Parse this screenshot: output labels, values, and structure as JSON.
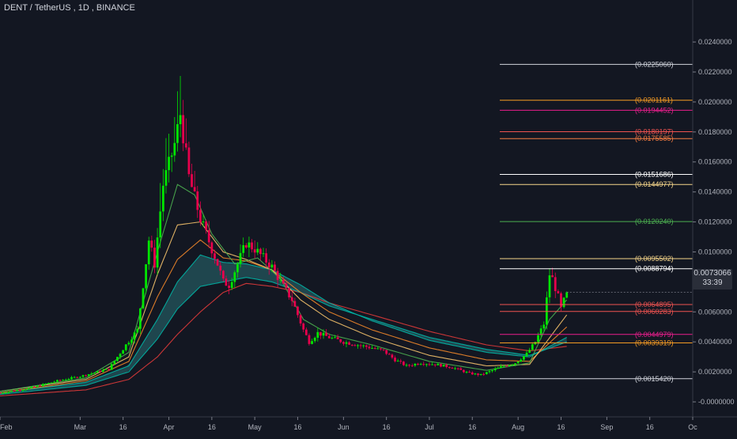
{
  "header": {
    "symbol": "DENT / TetherUS",
    "interval": "1D",
    "exchange": "BINANCE"
  },
  "last_price": {
    "value": "0.0073066",
    "countdown": "33:39",
    "color": "#2a2e39"
  },
  "colors": {
    "background": "#131722",
    "up": "#00e600",
    "down": "#e6004c",
    "ribbon_fill": "#2a6e72",
    "ribbon_edge": "#00b3a4",
    "ma_red": "#e03a3a",
    "ma_orange": "#f0862a",
    "ma_gold": "#f5c26b",
    "ma_green": "#4caf50"
  },
  "fib_levels": [
    {
      "value": 0.022506,
      "label": "(0.0225060)",
      "color": "#d1d4dc"
    },
    {
      "value": 0.0201161,
      "label": "(0.0201161)",
      "color": "#f59b23"
    },
    {
      "value": 0.0194452,
      "label": "(0.0194452)",
      "color": "#e91e8c"
    },
    {
      "value": 0.0180197,
      "label": "(0.0180197)",
      "color": "#ef5350"
    },
    {
      "value": 0.0175585,
      "label": "(0.0175585)",
      "color": "#f57c42"
    },
    {
      "value": 0.0151686,
      "label": "(0.0151686)",
      "color": "#ffffff"
    },
    {
      "value": 0.0144977,
      "label": "(0.0144977)",
      "color": "#f5d58a"
    },
    {
      "value": 0.012024,
      "label": "(0.0120240)",
      "color": "#4caf50"
    },
    {
      "value": 0.0095502,
      "label": "(0.0095502)",
      "color": "#f5d58a"
    },
    {
      "value": 0.0088794,
      "label": "(0.0088794)",
      "color": "#ffffff"
    },
    {
      "value": 0.0064895,
      "label": "(0.0064895)",
      "color": "#ef5350"
    },
    {
      "value": 0.0060283,
      "label": "(0.0060283)",
      "color": "#ef5350"
    },
    {
      "value": 0.0044979,
      "label": "(0.0044979)",
      "color": "#e91e8c"
    },
    {
      "value": 0.0039319,
      "label": "(0.0039319)",
      "color": "#f59b23"
    },
    {
      "value": 0.001542,
      "label": "(0.0015420)",
      "color": "#d1d4dc"
    }
  ],
  "chart_data": {
    "type": "candlestick",
    "title": "",
    "ylim": [
      -0.001,
      0.0268
    ],
    "y_ticks": [
      "0.0240000",
      "0.0220000",
      "0.0200000",
      "0.0180000",
      "0.0160000",
      "0.0140000",
      "0.0120000",
      "0.0100000",
      "0.0080000",
      "0.0060000",
      "0.0040000",
      "0.0020000",
      "-0.0000000"
    ],
    "y_tick_values": [
      0.024,
      0.022,
      0.02,
      0.018,
      0.016,
      0.014,
      0.012,
      0.01,
      0.008,
      0.006,
      0.004,
      0.002,
      0.0
    ],
    "x_ticks": [
      "Feb",
      "Mar",
      "16",
      "Apr",
      "16",
      "May",
      "16",
      "Jun",
      "16",
      "Jul",
      "16",
      "Aug",
      "16",
      "Sep",
      "16",
      "Oc"
    ],
    "x_tick_days": [
      0,
      28,
      43,
      59,
      74,
      89,
      104,
      120,
      135,
      150,
      165,
      181,
      196,
      212,
      227,
      242
    ],
    "x_day_range": [
      0,
      242
    ],
    "start_date": "Feb 1",
    "price_path": [
      [
        0,
        0.0006
      ],
      [
        10,
        0.0009
      ],
      [
        20,
        0.0014
      ],
      [
        28,
        0.0017
      ],
      [
        38,
        0.0022
      ],
      [
        44,
        0.0038
      ],
      [
        48,
        0.0048
      ],
      [
        50,
        0.0078
      ],
      [
        52,
        0.0108
      ],
      [
        54,
        0.0092
      ],
      [
        57,
        0.0145
      ],
      [
        59,
        0.0158
      ],
      [
        61,
        0.0172
      ],
      [
        63,
        0.0192
      ],
      [
        64,
        0.0178
      ],
      [
        66,
        0.015
      ],
      [
        68,
        0.0136
      ],
      [
        70,
        0.0122
      ],
      [
        72,
        0.0112
      ],
      [
        74,
        0.0102
      ],
      [
        76,
        0.0092
      ],
      [
        78,
        0.008
      ],
      [
        80,
        0.0078
      ],
      [
        83,
        0.0092
      ],
      [
        86,
        0.0106
      ],
      [
        89,
        0.0102
      ],
      [
        92,
        0.0096
      ],
      [
        95,
        0.009
      ],
      [
        98,
        0.008
      ],
      [
        102,
        0.0068
      ],
      [
        106,
        0.0048
      ],
      [
        108,
        0.004
      ],
      [
        111,
        0.0046
      ],
      [
        115,
        0.0043
      ],
      [
        120,
        0.004
      ],
      [
        125,
        0.0038
      ],
      [
        130,
        0.0036
      ],
      [
        134,
        0.0034
      ],
      [
        138,
        0.0028
      ],
      [
        142,
        0.0024
      ],
      [
        147,
        0.0026
      ],
      [
        152,
        0.0025
      ],
      [
        158,
        0.0023
      ],
      [
        164,
        0.0019
      ],
      [
        168,
        0.0018
      ],
      [
        172,
        0.0021
      ],
      [
        176,
        0.0024
      ],
      [
        180,
        0.0026
      ],
      [
        184,
        0.0032
      ],
      [
        187,
        0.004
      ],
      [
        190,
        0.0052
      ],
      [
        192,
        0.0085
      ],
      [
        193,
        0.0082
      ],
      [
        195,
        0.007
      ],
      [
        196,
        0.0062
      ],
      [
        198,
        0.0073
      ]
    ],
    "series": [
      {
        "name": "",
        "color": "#e03a3a",
        "values": [
          [
            0,
            0.0004
          ],
          [
            30,
            0.0008
          ],
          [
            45,
            0.0015
          ],
          [
            55,
            0.003
          ],
          [
            62,
            0.0045
          ],
          [
            70,
            0.006
          ],
          [
            78,
            0.0073
          ],
          [
            86,
            0.0079
          ],
          [
            95,
            0.0077
          ],
          [
            105,
            0.0073
          ],
          [
            115,
            0.0066
          ],
          [
            130,
            0.0058
          ],
          [
            150,
            0.0047
          ],
          [
            170,
            0.0038
          ],
          [
            185,
            0.0034
          ],
          [
            198,
            0.0037
          ]
        ]
      },
      {
        "name": "",
        "color": "#00b3a4",
        "values": [
          [
            0,
            0.0005
          ],
          [
            30,
            0.0011
          ],
          [
            45,
            0.002
          ],
          [
            55,
            0.0042
          ],
          [
            62,
            0.0062
          ],
          [
            70,
            0.0077
          ],
          [
            78,
            0.008
          ],
          [
            86,
            0.0083
          ],
          [
            95,
            0.008
          ],
          [
            105,
            0.0073
          ],
          [
            115,
            0.0064
          ],
          [
            130,
            0.0055
          ],
          [
            150,
            0.0043
          ],
          [
            170,
            0.0035
          ],
          [
            185,
            0.0031
          ],
          [
            198,
            0.004
          ]
        ]
      },
      {
        "name": "",
        "color": "#00b3a4",
        "values": [
          [
            0,
            0.0006
          ],
          [
            30,
            0.0013
          ],
          [
            45,
            0.0024
          ],
          [
            55,
            0.0055
          ],
          [
            62,
            0.008
          ],
          [
            70,
            0.0098
          ],
          [
            78,
            0.0093
          ],
          [
            86,
            0.0092
          ],
          [
            95,
            0.0088
          ],
          [
            105,
            0.0078
          ],
          [
            115,
            0.0066
          ],
          [
            130,
            0.0054
          ],
          [
            150,
            0.0041
          ],
          [
            170,
            0.0033
          ],
          [
            185,
            0.003
          ],
          [
            198,
            0.0043
          ]
        ]
      },
      {
        "name": "",
        "color": "#f0862a",
        "values": [
          [
            0,
            0.0006
          ],
          [
            30,
            0.0014
          ],
          [
            45,
            0.0027
          ],
          [
            55,
            0.007
          ],
          [
            62,
            0.0095
          ],
          [
            70,
            0.0108
          ],
          [
            78,
            0.0096
          ],
          [
            86,
            0.0094
          ],
          [
            95,
            0.0088
          ],
          [
            105,
            0.0073
          ],
          [
            115,
            0.006
          ],
          [
            130,
            0.0048
          ],
          [
            150,
            0.0036
          ],
          [
            170,
            0.0028
          ],
          [
            185,
            0.0027
          ],
          [
            198,
            0.005
          ]
        ]
      },
      {
        "name": "",
        "color": "#f5c26b",
        "values": [
          [
            0,
            0.0007
          ],
          [
            30,
            0.0015
          ],
          [
            45,
            0.003
          ],
          [
            55,
            0.0085
          ],
          [
            62,
            0.0118
          ],
          [
            70,
            0.012
          ],
          [
            78,
            0.01
          ],
          [
            86,
            0.0095
          ],
          [
            95,
            0.0088
          ],
          [
            105,
            0.0068
          ],
          [
            115,
            0.0055
          ],
          [
            130,
            0.0043
          ],
          [
            150,
            0.0031
          ],
          [
            170,
            0.0024
          ],
          [
            185,
            0.0025
          ],
          [
            198,
            0.0058
          ]
        ]
      },
      {
        "name": "",
        "color": "#4caf50",
        "values": [
          [
            0,
            0.0007
          ],
          [
            30,
            0.0016
          ],
          [
            45,
            0.0033
          ],
          [
            55,
            0.01
          ],
          [
            62,
            0.0145
          ],
          [
            68,
            0.0138
          ],
          [
            74,
            0.0112
          ],
          [
            82,
            0.0092
          ],
          [
            90,
            0.0096
          ],
          [
            98,
            0.0082
          ],
          [
            106,
            0.0055
          ],
          [
            115,
            0.0045
          ],
          [
            130,
            0.0038
          ],
          [
            150,
            0.0027
          ],
          [
            170,
            0.0021
          ],
          [
            185,
            0.0026
          ],
          [
            192,
            0.0055
          ],
          [
            198,
            0.0068
          ]
        ]
      }
    ]
  }
}
